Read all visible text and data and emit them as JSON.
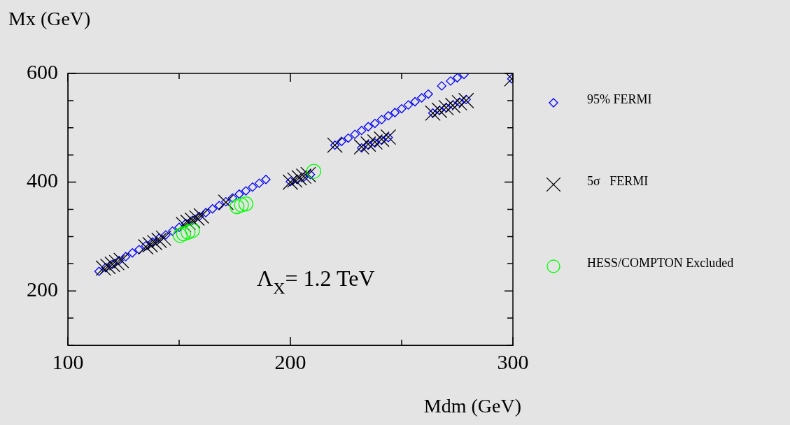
{
  "chart_data": {
    "type": "scatter",
    "xlabel": "Mdm (GeV)",
    "ylabel": "Mx (GeV)",
    "annotations": [
      "Λ$_{X}$= 1.2 TeV"
    ],
    "xlim": [
      100,
      300
    ],
    "ylim": [
      100,
      600
    ],
    "xticks": [
      100,
      {
        "value": 150,
        "label": null
      },
      200,
      {
        "value": 250,
        "label": null
      },
      300
    ],
    "yticks": [
      {
        "value": 100,
        "label": null
      },
      {
        "value": 150,
        "label": null
      },
      200,
      {
        "value": 250,
        "label": null
      },
      {
        "value": 300,
        "label": null
      },
      {
        "value": 350,
        "label": null
      },
      400,
      {
        "value": 450,
        "label": null
      },
      {
        "value": 500,
        "label": null
      },
      {
        "value": 550,
        "label": null
      },
      600
    ],
    "legend": "right",
    "grid": false,
    "series": [
      {
        "name": "95% FERMI",
        "color": "#0000ff",
        "marker": "diamond",
        "x": [
          114,
          117,
          120,
          123,
          126,
          129,
          132,
          135,
          138,
          141,
          144,
          147,
          150,
          153,
          156,
          159,
          162,
          165,
          168,
          171,
          174,
          177,
          180,
          183,
          186,
          189,
          200,
          203,
          206,
          209,
          220,
          223,
          226,
          229,
          232,
          235,
          238,
          241,
          244,
          247,
          250,
          253,
          256,
          259,
          262,
          268,
          272,
          275,
          278,
          232,
          235,
          238,
          241,
          244,
          264,
          267,
          270,
          273,
          276,
          279,
          299.5
        ],
        "values": [
          236,
          243,
          249,
          256,
          263,
          270,
          276,
          283,
          290,
          297,
          303,
          310,
          317,
          324,
          330,
          337,
          344,
          351,
          357,
          364,
          371,
          378,
          384,
          391,
          398,
          405,
          401,
          405,
          409,
          414,
          468,
          475,
          481,
          488,
          495,
          502,
          508,
          515,
          522,
          528,
          535,
          542,
          548,
          555,
          562,
          577,
          586,
          592,
          598,
          463,
          468,
          472,
          477,
          482,
          527,
          532,
          537,
          542,
          547,
          552,
          590
        ]
      },
      {
        "name": "5σ   FERMI",
        "color": "#000000",
        "marker": "cross",
        "x": [
          116,
          118,
          120,
          122,
          124,
          135,
          137,
          139,
          141,
          143,
          152,
          154,
          156,
          158,
          160,
          171,
          200,
          202,
          204,
          206,
          208,
          220,
          232,
          235,
          238,
          241,
          244,
          264,
          267,
          270,
          273,
          276,
          279,
          299.5
        ],
        "values": [
          242,
          245,
          249,
          252,
          256,
          281,
          285,
          289,
          293,
          297,
          322,
          326,
          330,
          334,
          338,
          363,
          400,
          404,
          408,
          411,
          414,
          468,
          465,
          470,
          474,
          479,
          483,
          527,
          532,
          537,
          541,
          546,
          550,
          590
        ]
      },
      {
        "name": "HESS/COMPTON Excluded",
        "color": "#00ff00",
        "marker": "circle",
        "x": [
          150.5,
          152,
          154,
          156,
          176,
          178,
          180,
          210.5
        ],
        "values": [
          302,
          305,
          308,
          311,
          355,
          358,
          360,
          420
        ]
      }
    ]
  }
}
